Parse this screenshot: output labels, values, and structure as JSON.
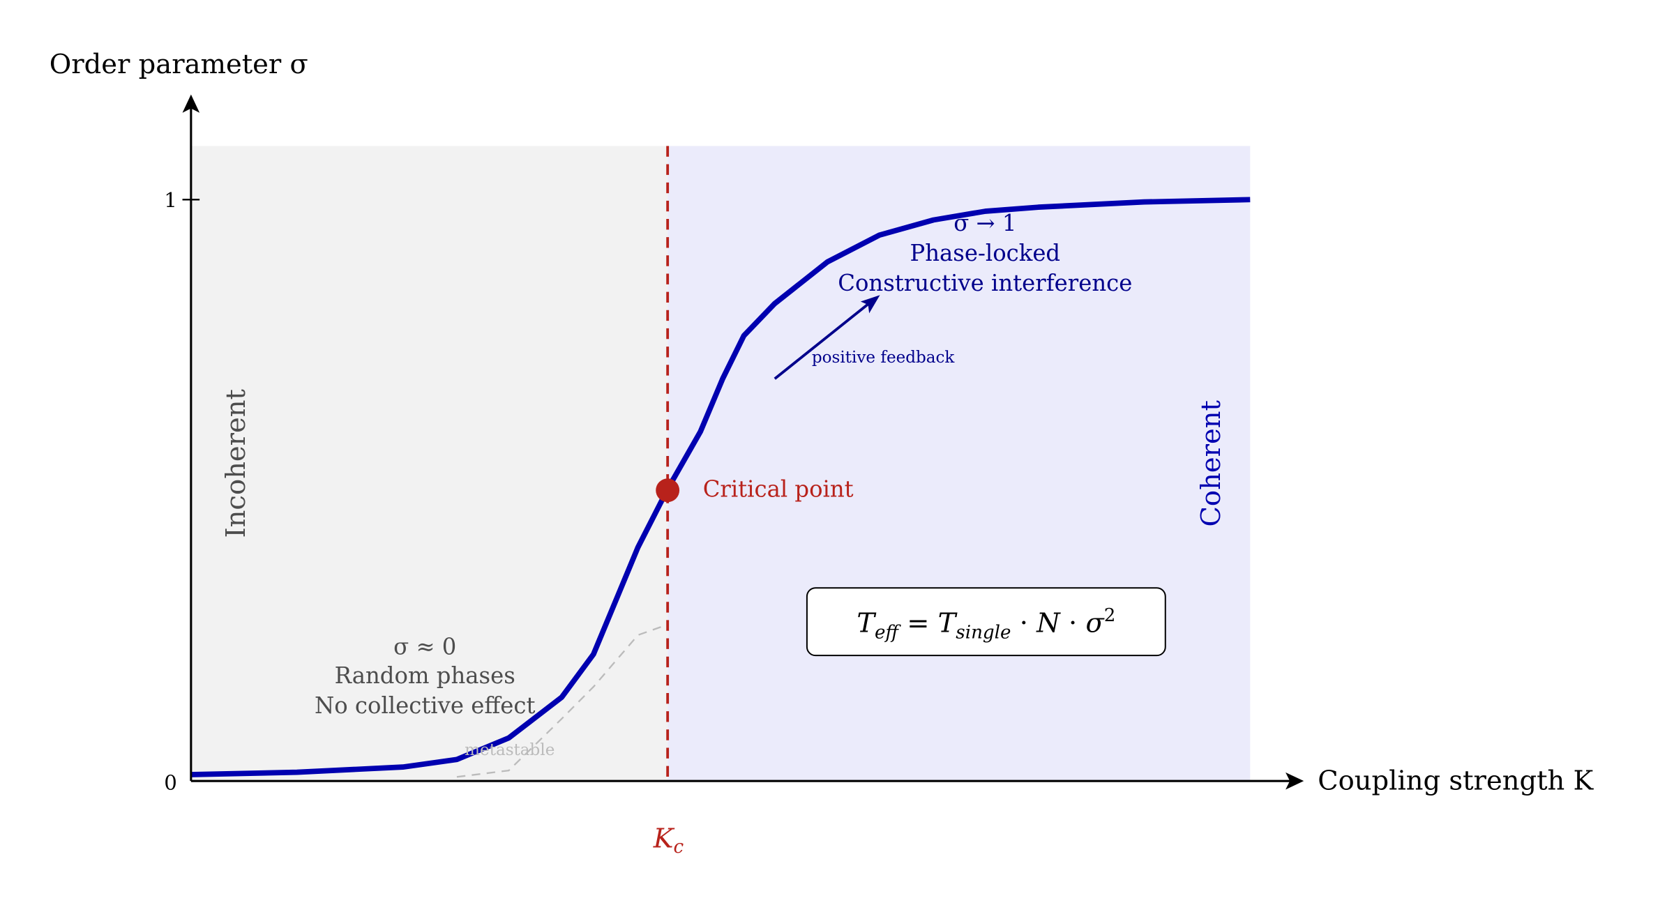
{
  "chart_data": {
    "type": "line",
    "title": "",
    "xlabel": "Coupling strength K",
    "ylabel": "Order parameter σ",
    "xlim": [
      0,
      10
    ],
    "ylim": [
      0,
      1.1
    ],
    "yticks": [
      {
        "value": 0,
        "label": "0"
      },
      {
        "value": 1,
        "label": "1"
      }
    ],
    "grid": false,
    "critical": {
      "x": 4.5,
      "y": 0.5,
      "label": "Critical point",
      "axis_label": "K_c"
    },
    "series": [
      {
        "name": "order parameter",
        "color": "#0000b0",
        "x": [
          0,
          1.0,
          2.0,
          2.51,
          3.0,
          3.5,
          3.8,
          4.22,
          4.5,
          4.81,
          5.02,
          5.22,
          5.51,
          6.01,
          6.5,
          7.01,
          7.5,
          8.0,
          9.0,
          10
        ],
        "y": [
          0.011,
          0.015,
          0.024,
          0.037,
          0.074,
          0.144,
          0.218,
          0.402,
          0.502,
          0.601,
          0.692,
          0.766,
          0.821,
          0.893,
          0.939,
          0.965,
          0.98,
          0.987,
          0.996,
          1.0
        ]
      },
      {
        "name": "metastable",
        "color": "#bbbbbb",
        "dashed": true,
        "x": [
          2.51,
          3.0,
          3.5,
          3.8,
          4.22,
          4.5
        ],
        "y": [
          0.007,
          0.018,
          0.107,
          0.162,
          0.251,
          0.269
        ]
      }
    ],
    "regions": [
      {
        "name": "Incoherent",
        "from": 0,
        "to": 4.5,
        "color": "#f2f2f2"
      },
      {
        "name": "Coherent",
        "from": 4.5,
        "to": 10,
        "color": "#ebebfb"
      }
    ],
    "annotations": {
      "incoherent_lines": [
        "σ ≈ 0",
        "Random phases",
        "No collective effect"
      ],
      "coherent_lines": [
        "σ → 1",
        "Phase-locked",
        "Constructive interference"
      ],
      "feedback": "positive feedback",
      "metastable": "metastable",
      "formula": "T_eff = T_single · N · σ²"
    },
    "colors": {
      "curve": "#0000b0",
      "critical": "#b8221b",
      "annotation_blue": "#00008b",
      "gray_text": "#4d4d4d"
    }
  }
}
